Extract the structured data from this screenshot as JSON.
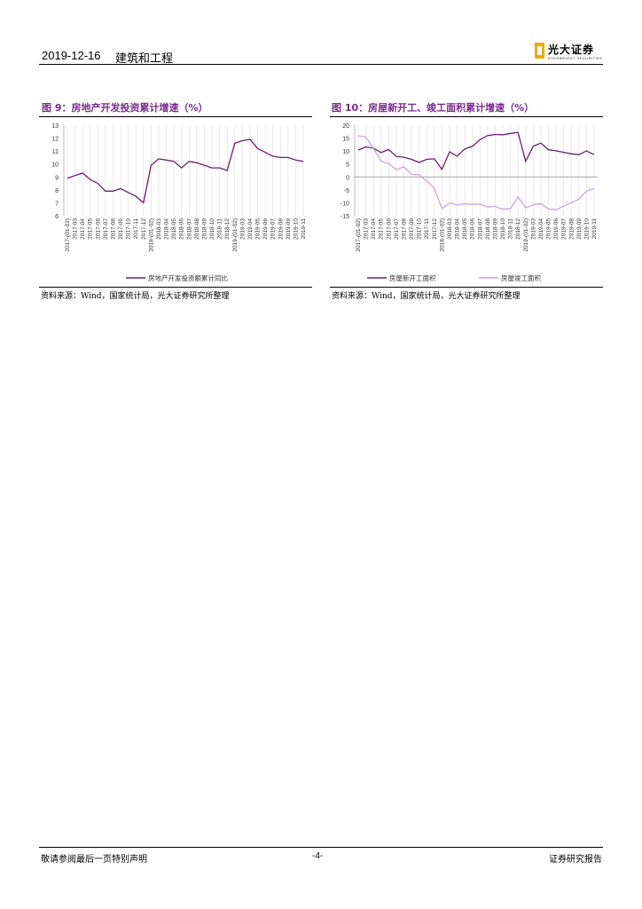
{
  "header": {
    "date": "2019-12-16",
    "sector": "建筑和工程",
    "logo_text": "光大证券",
    "logo_sub": "EVERBRIGHT SECURITIES"
  },
  "figures": [
    {
      "title": "图 9：房地产开发投资累计增速（%）",
      "source": "资料来源：Wind，国家统计局，光大证券研究所整理"
    },
    {
      "title": "图 10：房屋新开工、竣工面积累计增速（%）",
      "source": "资料来源：Wind，国家统计局，光大证券研究所整理"
    }
  ],
  "chart_data": [
    {
      "type": "line",
      "x": [
        "2017-(01-02)",
        "2017-03",
        "2017-04",
        "2017-05",
        "2017-06",
        "2017-07",
        "2017-08",
        "2017-09",
        "2017-10",
        "2017-11",
        "2017-12",
        "2018-(01-02)",
        "2018-03",
        "2018-04",
        "2018-05",
        "2018-06",
        "2018-07",
        "2018-08",
        "2018-09",
        "2018-10",
        "2018-11",
        "2018-12",
        "2019-(01-02)",
        "2019-03",
        "2019-04",
        "2019-05",
        "2019-06",
        "2019-07",
        "2019-08",
        "2019-09",
        "2019-10",
        "2019-11"
      ],
      "series": [
        {
          "name": "房地产开发投资额累计同比",
          "color": "#6b1f6f",
          "values": [
            8.9,
            9.1,
            9.3,
            8.8,
            8.5,
            7.9,
            7.9,
            8.1,
            7.8,
            7.5,
            7.0,
            9.9,
            10.4,
            10.3,
            10.2,
            9.7,
            10.2,
            10.1,
            9.9,
            9.7,
            9.7,
            9.5,
            11.6,
            11.8,
            11.9,
            11.2,
            10.9,
            10.6,
            10.5,
            10.5,
            10.3,
            10.2
          ]
        }
      ],
      "ylim": [
        6,
        13
      ],
      "yticks": [
        "13",
        "12",
        "11",
        "10",
        "9",
        "8",
        "7",
        "6"
      ],
      "grid": "vertical",
      "legend": "bottom"
    },
    {
      "type": "line",
      "x": [
        "2017-(01-02)",
        "2017-03",
        "2017-04",
        "2017-05",
        "2017-06",
        "2017-07",
        "2017-08",
        "2017-09",
        "2017-10",
        "2017-11",
        "2017-12",
        "2018-(01-02)",
        "2018-03",
        "2018-04",
        "2018-05",
        "2018-06",
        "2018-07",
        "2018-08",
        "2018-09",
        "2018-10",
        "2018-11",
        "2018-12",
        "2019-(01-02)",
        "2019-03",
        "2019-04",
        "2019-05",
        "2019-06",
        "2019-07",
        "2019-08",
        "2019-09",
        "2019-10",
        "2019-11"
      ],
      "series": [
        {
          "name": "房屋新开工面积",
          "color": "#6b1f6f",
          "values": [
            10.4,
            11.6,
            11.1,
            9.4,
            10.6,
            7.9,
            7.6,
            6.8,
            5.6,
            6.8,
            7.0,
            2.9,
            9.7,
            8.0,
            10.8,
            11.8,
            14.4,
            16.0,
            16.4,
            16.3,
            16.8,
            17.2,
            6.0,
            11.9,
            13.1,
            10.5,
            10.1,
            9.5,
            8.9,
            8.6,
            10.0,
            8.6
          ]
        },
        {
          "name": "房屋竣工面积",
          "color": "#c6a3e8",
          "values": [
            15.9,
            15.4,
            11.0,
            6.1,
            5.1,
            2.8,
            3.9,
            1.0,
            0.8,
            -1.5,
            -4.4,
            -12.3,
            -10.1,
            -10.8,
            -10.4,
            -10.6,
            -10.5,
            -11.6,
            -11.4,
            -12.5,
            -12.3,
            -7.8,
            -11.9,
            -10.8,
            -10.3,
            -12.4,
            -12.7,
            -11.3,
            -10.0,
            -8.6,
            -5.5,
            -4.5
          ]
        }
      ],
      "ylim": [
        -15,
        20
      ],
      "yticks": [
        "20",
        "15",
        "10",
        "5",
        "0",
        "-5",
        "-10",
        "-15"
      ],
      "grid": "vertical",
      "legend": "bottom"
    }
  ],
  "footer": {
    "left": "敬请参阅最后一页特别声明",
    "page": "-4-",
    "right": "证券研究报告"
  }
}
